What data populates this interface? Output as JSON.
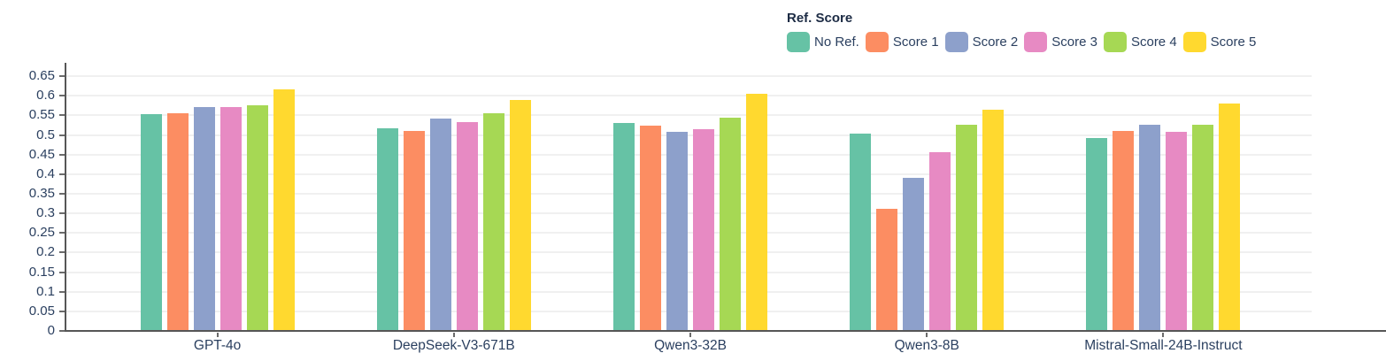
{
  "legend": {
    "title": "Ref. Score"
  },
  "chart_data": {
    "type": "bar",
    "title": "",
    "xlabel": "",
    "ylabel": "",
    "ylim": [
      0,
      0.65
    ],
    "ytick_step": 0.05,
    "ytick_labels": [
      "0",
      "0.05",
      "0.1",
      "0.15",
      "0.2",
      "0.25",
      "0.3",
      "0.35",
      "0.4",
      "0.45",
      "0.5",
      "0.55",
      "0.6",
      "0.65"
    ],
    "grid": true,
    "legend_position": "top-right",
    "legend_title": "Ref. Score",
    "categories": [
      "GPT-4o",
      "DeepSeek-V3-671B",
      "Qwen3-32B",
      "Qwen3-8B",
      "Mistral-Small-24B-Instruct"
    ],
    "series": [
      {
        "name": "No Ref.",
        "color": "#66C2A5",
        "values": [
          0.553,
          0.516,
          0.531,
          0.504,
          0.493
        ]
      },
      {
        "name": "Score 1",
        "color": "#FC8D62",
        "values": [
          0.555,
          0.51,
          0.524,
          0.311,
          0.511
        ]
      },
      {
        "name": "Score 2",
        "color": "#8DA0CB",
        "values": [
          0.572,
          0.543,
          0.508,
          0.39,
          0.527
        ]
      },
      {
        "name": "Score 3",
        "color": "#E78AC3",
        "values": [
          0.571,
          0.533,
          0.515,
          0.457,
          0.508
        ]
      },
      {
        "name": "Score 4",
        "color": "#A6D854",
        "values": [
          0.576,
          0.556,
          0.545,
          0.527,
          0.527
        ]
      },
      {
        "name": "Score 5",
        "color": "#FFD92F",
        "values": [
          0.617,
          0.589,
          0.606,
          0.565,
          0.58
        ]
      }
    ]
  }
}
